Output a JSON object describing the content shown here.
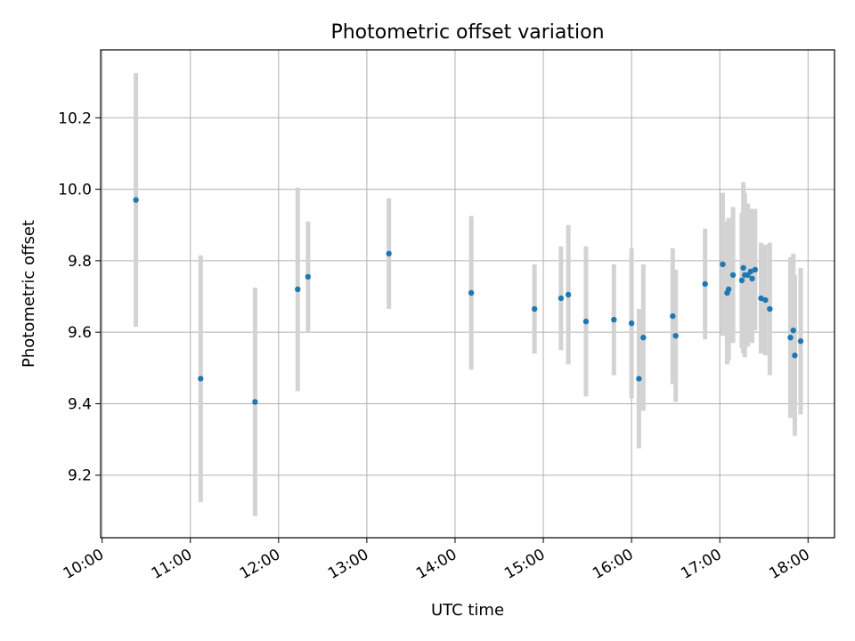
{
  "chart_data": {
    "type": "scatter",
    "title": "Photometric offset variation",
    "xlabel": "UTC time",
    "ylabel": "Photometric offset",
    "xlim": [
      "09:59",
      "18:18"
    ],
    "ylim": [
      9.025,
      10.39
    ],
    "xticks": [
      "10:00",
      "11:00",
      "12:00",
      "13:00",
      "14:00",
      "15:00",
      "16:00",
      "17:00",
      "18:00"
    ],
    "yticks": [
      9.2,
      9.4,
      9.6,
      9.8,
      10.0,
      10.2
    ],
    "grid": true,
    "colors": {
      "point": "#1f77b4",
      "errorbar": "#d3d3d3",
      "grid": "#b0b0b0"
    },
    "points": [
      {
        "x": "10:23",
        "y": 9.97,
        "err": 0.355
      },
      {
        "x": "11:07",
        "y": 9.47,
        "err": 0.345
      },
      {
        "x": "11:44",
        "y": 9.405,
        "err": 0.32
      },
      {
        "x": "12:13",
        "y": 9.72,
        "err": 0.285
      },
      {
        "x": "12:20",
        "y": 9.755,
        "err": 0.155
      },
      {
        "x": "13:15",
        "y": 9.82,
        "err": 0.155
      },
      {
        "x": "14:11",
        "y": 9.71,
        "err": 0.215
      },
      {
        "x": "14:54",
        "y": 9.665,
        "err": 0.125
      },
      {
        "x": "15:12",
        "y": 9.695,
        "err": 0.145
      },
      {
        "x": "15:17",
        "y": 9.705,
        "err": 0.195
      },
      {
        "x": "15:29",
        "y": 9.63,
        "err": 0.21
      },
      {
        "x": "15:48",
        "y": 9.635,
        "err": 0.155
      },
      {
        "x": "16:00",
        "y": 9.625,
        "err": 0.21
      },
      {
        "x": "16:05",
        "y": 9.47,
        "err": 0.195
      },
      {
        "x": "16:08",
        "y": 9.585,
        "err": 0.205
      },
      {
        "x": "16:28",
        "y": 9.645,
        "err": 0.19
      },
      {
        "x": "16:30",
        "y": 9.59,
        "err": 0.185
      },
      {
        "x": "16:50",
        "y": 9.735,
        "err": 0.155
      },
      {
        "x": "17:02",
        "y": 9.79,
        "err": 0.2
      },
      {
        "x": "17:05",
        "y": 9.71,
        "err": 0.2
      },
      {
        "x": "17:06",
        "y": 9.72,
        "err": 0.2
      },
      {
        "x": "17:09",
        "y": 9.76,
        "err": 0.19
      },
      {
        "x": "17:15",
        "y": 9.745,
        "err": 0.19
      },
      {
        "x": "17:16",
        "y": 9.78,
        "err": 0.24
      },
      {
        "x": "17:17",
        "y": 9.76,
        "err": 0.23
      },
      {
        "x": "17:19",
        "y": 9.76,
        "err": 0.2
      },
      {
        "x": "17:21",
        "y": 9.77,
        "err": 0.175
      },
      {
        "x": "17:22",
        "y": 9.75,
        "err": 0.18
      },
      {
        "x": "17:24",
        "y": 9.775,
        "err": 0.17
      },
      {
        "x": "17:28",
        "y": 9.695,
        "err": 0.155
      },
      {
        "x": "17:31",
        "y": 9.69,
        "err": 0.155
      },
      {
        "x": "17:34",
        "y": 9.665,
        "err": 0.185
      },
      {
        "x": "17:48",
        "y": 9.585,
        "err": 0.225
      },
      {
        "x": "17:50",
        "y": 9.605,
        "err": 0.215
      },
      {
        "x": "17:51",
        "y": 9.535,
        "err": 0.225
      },
      {
        "x": "17:55",
        "y": 9.575,
        "err": 0.205
      }
    ]
  }
}
